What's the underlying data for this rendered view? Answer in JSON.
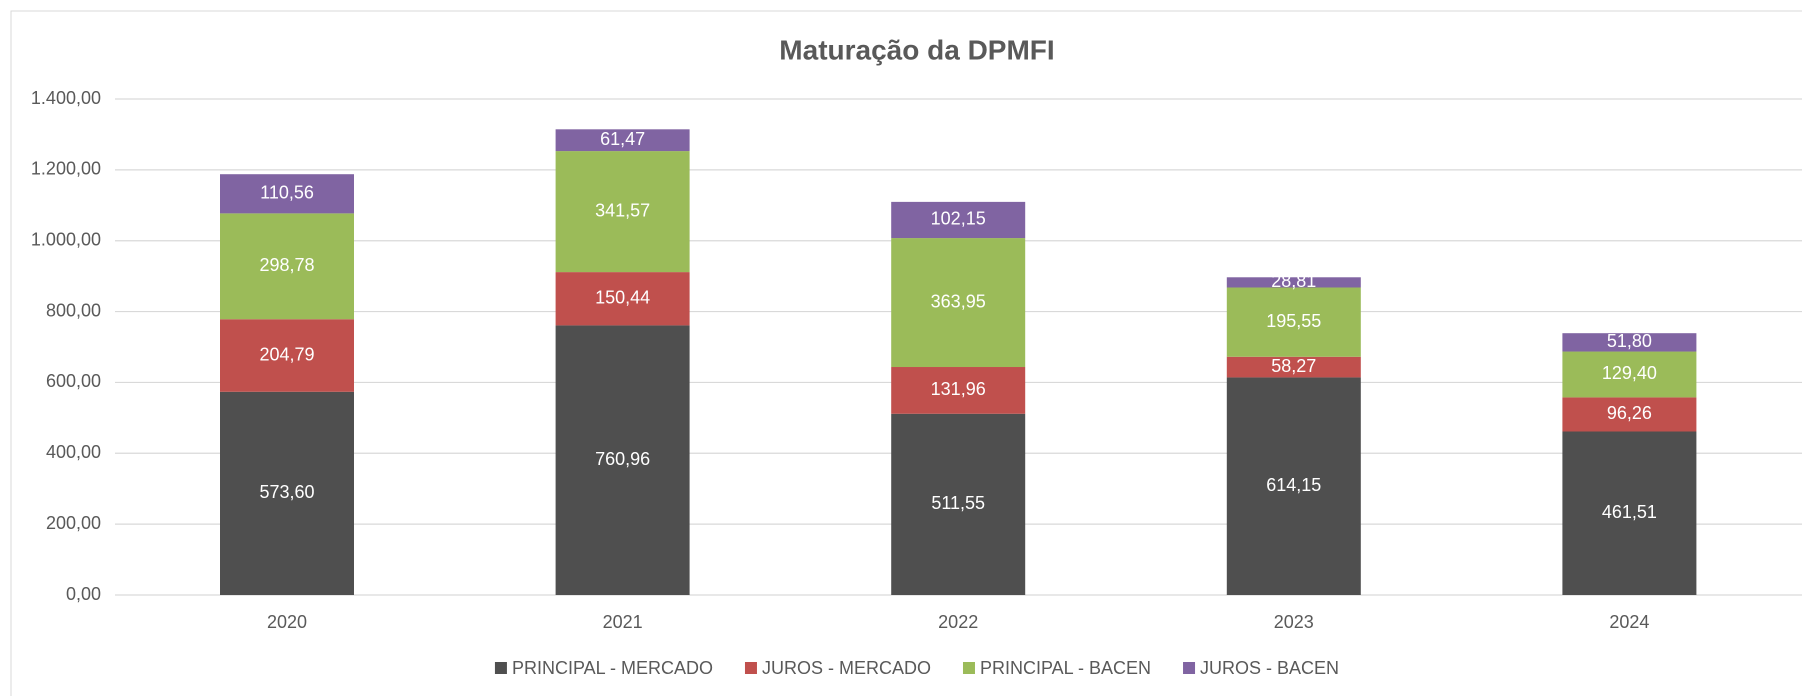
{
  "chart_data": {
    "type": "stacked_bar",
    "title": "Maturação da DPMFI",
    "categories": [
      "2020",
      "2021",
      "2022",
      "2023",
      "2024"
    ],
    "series": [
      {
        "name": "PRINCIPAL - MERCADO",
        "color": "#4f4f4f",
        "values": [
          573.6,
          760.96,
          511.55,
          614.15,
          461.51
        ],
        "value_labels": [
          "573,60",
          "760,96",
          "511,55",
          "614,15",
          "461,51"
        ]
      },
      {
        "name": "JUROS - MERCADO",
        "color": "#c0504d",
        "values": [
          204.79,
          150.44,
          131.96,
          58.27,
          96.26
        ],
        "value_labels": [
          "204,79",
          "150,44",
          "131,96",
          "58,27",
          "96,26"
        ]
      },
      {
        "name": "PRINCIPAL - BACEN",
        "color": "#9bbb59",
        "values": [
          298.78,
          341.57,
          363.95,
          195.55,
          129.4
        ],
        "value_labels": [
          "298,78",
          "341,57",
          "363,95",
          "195,55",
          "129,40"
        ]
      },
      {
        "name": "JUROS - BACEN",
        "color": "#8064a2",
        "values": [
          110.56,
          61.47,
          102.15,
          28.81,
          51.8
        ],
        "value_labels": [
          "110,56",
          "61,47",
          "102,15",
          "28,81",
          "51,80"
        ]
      }
    ],
    "ylim": [
      0,
      1400
    ],
    "yticks": [
      {
        "value": 0,
        "label": "0,00"
      },
      {
        "value": 200,
        "label": "200,00"
      },
      {
        "value": 400,
        "label": "400,00"
      },
      {
        "value": 600,
        "label": "600,00"
      },
      {
        "value": 800,
        "label": "800,00"
      },
      {
        "value": 1000,
        "label": "1.000,00"
      },
      {
        "value": 1200,
        "label": "1.200,00"
      },
      {
        "value": 1400,
        "label": "1.400,00"
      }
    ],
    "grid": true,
    "legend": "bottom"
  }
}
